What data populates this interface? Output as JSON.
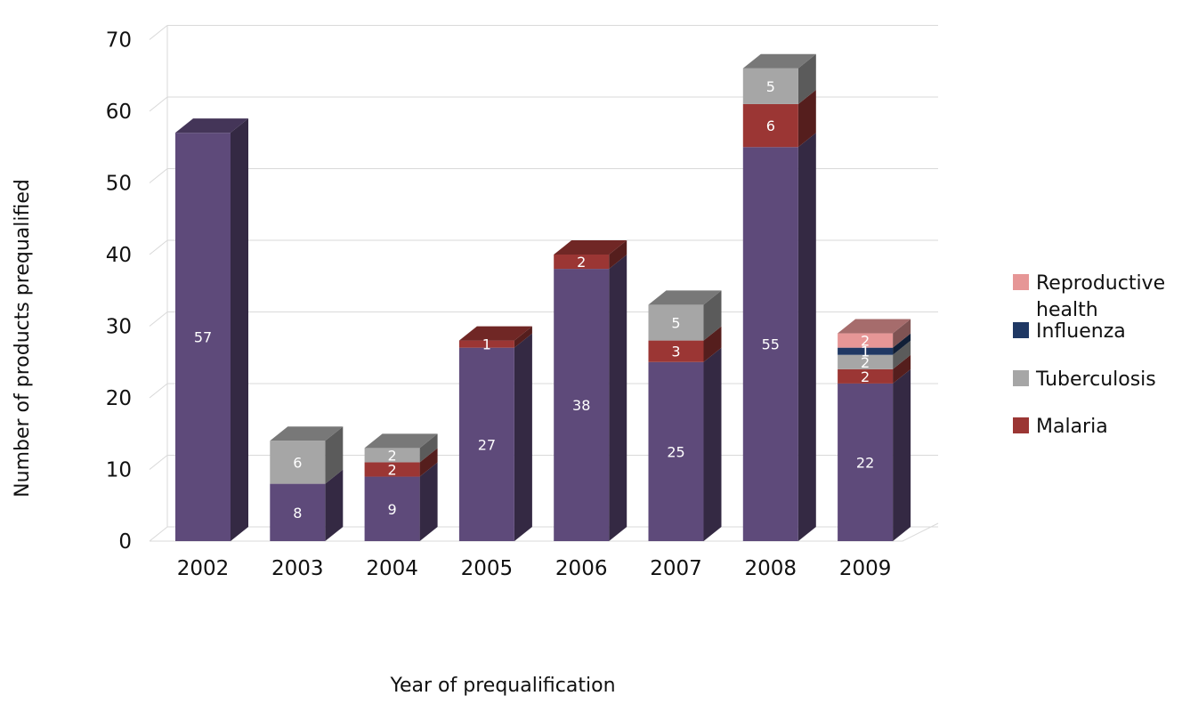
{
  "chart_data": {
    "type": "bar",
    "stacked": true,
    "three_d": true,
    "title": "",
    "xlabel": "Year of prequalification",
    "ylabel": "Number of products prequalified",
    "ylim": [
      0,
      70
    ],
    "yticks": [
      0,
      10,
      20,
      30,
      40,
      50,
      60,
      70
    ],
    "grid": true,
    "legend_position": "right",
    "categories": [
      "2002",
      "2003",
      "2004",
      "2005",
      "2006",
      "2007",
      "2008",
      "2009"
    ],
    "series": [
      {
        "name": "",
        "color": "#5e4a7a",
        "values": [
          57,
          8,
          9,
          27,
          38,
          25,
          55,
          22
        ]
      },
      {
        "name": "Malaria",
        "color": "#9b3634",
        "values": [
          0,
          0,
          2,
          1,
          2,
          3,
          6,
          2
        ]
      },
      {
        "name": "Tuberculosis",
        "color": "#a6a6a6",
        "values": [
          0,
          6,
          2,
          0,
          0,
          5,
          5,
          2
        ]
      },
      {
        "name": "Influenza",
        "color": "#1f3864",
        "values": [
          0,
          0,
          0,
          0,
          0,
          0,
          0,
          1
        ]
      },
      {
        "name": "Reproductive health",
        "color": "#e69696",
        "values": [
          0,
          0,
          0,
          0,
          0,
          0,
          0,
          2
        ]
      }
    ],
    "legend": [
      "Reproductive health",
      "Influenza",
      "Tuberculosis",
      "Malaria"
    ]
  }
}
